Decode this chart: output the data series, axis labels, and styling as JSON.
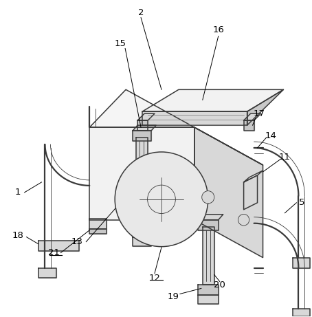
{
  "bg_color": "#ffffff",
  "line_color": "#3a3a3a",
  "lw": 1.1,
  "tlw": 0.6,
  "gray_fill": "#e8e8e8",
  "gray_mid": "#d8d8d8",
  "gray_dark": "#c8c8c8",
  "gray_light": "#f2f2f2",
  "label_fs": 9.5
}
